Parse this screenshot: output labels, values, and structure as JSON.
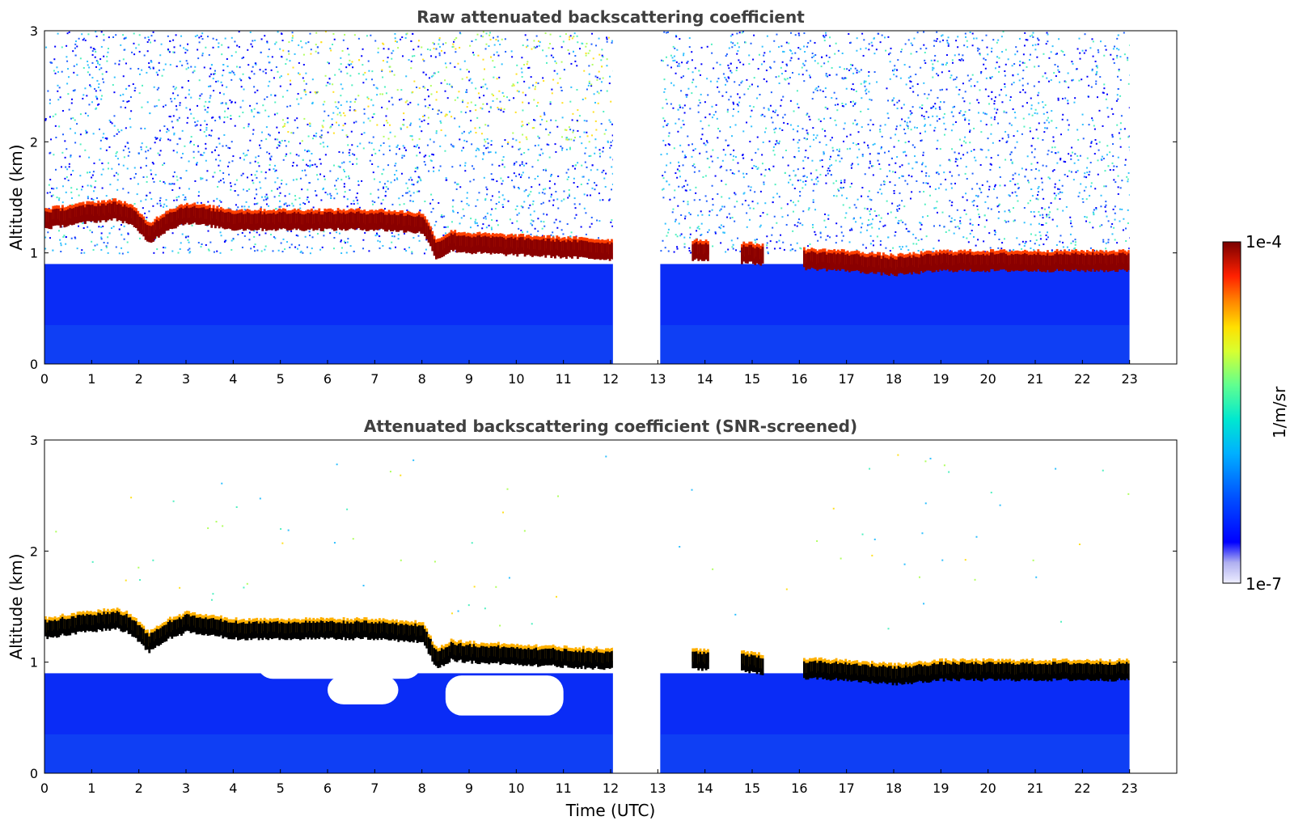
{
  "chart_data": [
    {
      "type": "heatmap",
      "title": "Raw attenuated backscattering coefficient",
      "xlabel": "",
      "ylabel": "Altitude (km)",
      "xlim": [
        0,
        24
      ],
      "ylim": [
        0,
        3
      ],
      "xticks": [
        "0",
        "1",
        "2",
        "3",
        "4",
        "5",
        "6",
        "7",
        "8",
        "9",
        "10",
        "11",
        "12",
        "13",
        "14",
        "15",
        "16",
        "17",
        "18",
        "19",
        "20",
        "21",
        "22",
        "23"
      ],
      "yticks": [
        "0",
        "1",
        "2",
        "3"
      ],
      "data_gap": [
        12.05,
        13.05
      ],
      "data_end": 23.0,
      "cloud_layer": {
        "time": [
          0,
          1,
          1.5,
          1.8,
          2.2,
          2.6,
          3,
          3.5,
          4,
          5,
          6,
          7,
          8,
          8.3,
          8.6,
          9,
          10,
          11,
          12,
          13.8,
          14.9,
          16,
          17,
          18,
          19,
          20,
          21,
          22,
          23
        ],
        "altitude_km": [
          1.28,
          1.34,
          1.36,
          1.32,
          1.15,
          1.27,
          1.33,
          1.3,
          1.27,
          1.27,
          1.27,
          1.27,
          1.24,
          1.0,
          1.08,
          1.06,
          1.04,
          1.02,
          1.0,
          1.0,
          0.97,
          0.92,
          0.9,
          0.86,
          0.9,
          0.9,
          0.9,
          0.9,
          0.9
        ]
      }
    },
    {
      "type": "heatmap",
      "title": "Attenuated backscattering coefficient (SNR-screened)",
      "xlabel": "Time (UTC)",
      "ylabel": "Altitude (km)",
      "xlim": [
        0,
        24
      ],
      "ylim": [
        0,
        3
      ],
      "xticks": [
        "0",
        "1",
        "2",
        "3",
        "4",
        "5",
        "6",
        "7",
        "8",
        "9",
        "10",
        "11",
        "12",
        "13",
        "14",
        "15",
        "16",
        "17",
        "18",
        "19",
        "20",
        "21",
        "22",
        "23"
      ],
      "yticks": [
        "0",
        "1",
        "2",
        "3"
      ],
      "data_gap": [
        12.05,
        13.05
      ],
      "data_end": 23.0,
      "cloud_layer": {
        "time": [
          0,
          1,
          1.5,
          1.8,
          2.2,
          2.6,
          3,
          3.5,
          4,
          5,
          6,
          7,
          8,
          8.3,
          8.6,
          9,
          10,
          11,
          12,
          13.8,
          14.9,
          16,
          17,
          18,
          19,
          20,
          21,
          22,
          23
        ],
        "altitude_km": [
          1.28,
          1.34,
          1.36,
          1.32,
          1.15,
          1.27,
          1.33,
          1.3,
          1.27,
          1.27,
          1.27,
          1.27,
          1.24,
          1.0,
          1.08,
          1.06,
          1.04,
          1.02,
          1.0,
          1.0,
          0.97,
          0.92,
          0.9,
          0.86,
          0.9,
          0.9,
          0.9,
          0.9,
          0.9
        ]
      }
    }
  ],
  "colorbar": {
    "label": "1/m/sr",
    "max_label": "1e-4",
    "min_label": "1e-7",
    "colors": [
      "#eeeeff",
      "#c8c8f5",
      "#a0a0f0",
      "#0000ff",
      "#0040ff",
      "#0080ff",
      "#00c0ff",
      "#00e0e0",
      "#40ffb0",
      "#a0ff60",
      "#e0ff20",
      "#ffe000",
      "#ff9000",
      "#ff3000",
      "#d00000",
      "#800000"
    ]
  }
}
